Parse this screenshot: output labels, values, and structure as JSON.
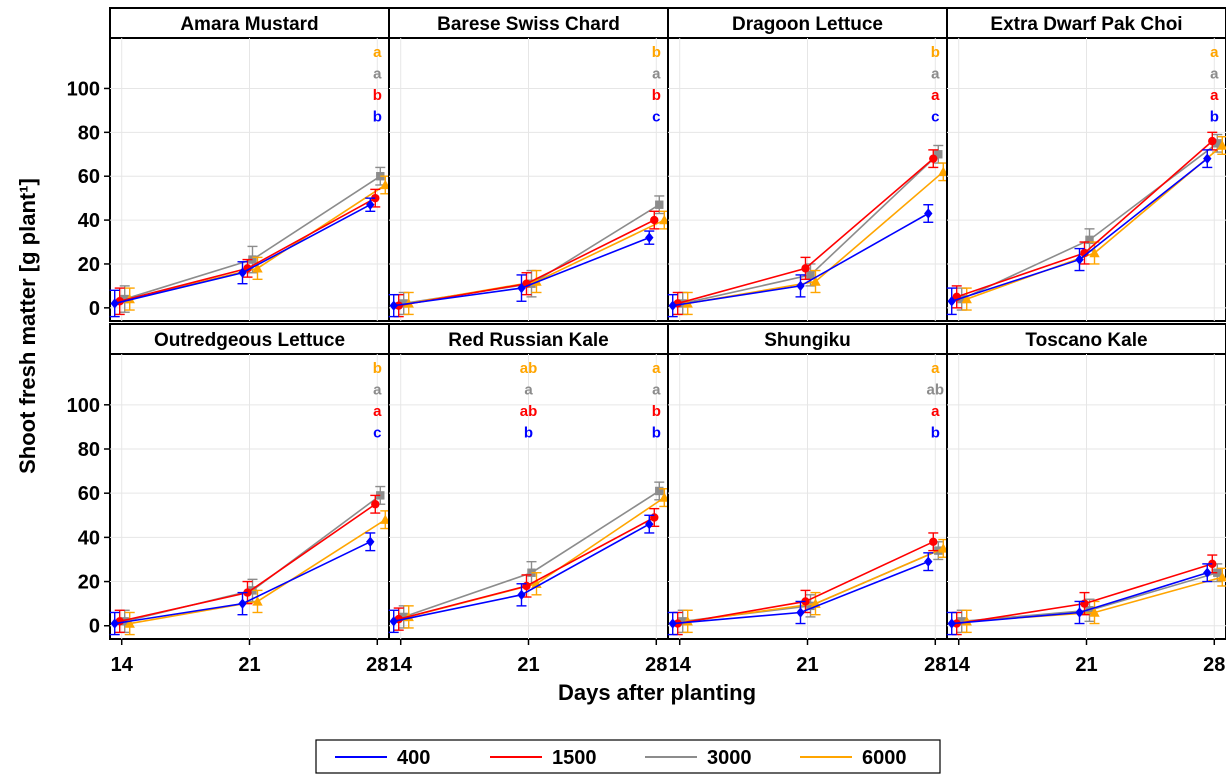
{
  "chart_data": {
    "type": "line",
    "xlabel": "Days after planting",
    "ylabel": "Shoot fresh matter [g plant¹]",
    "x": [
      14,
      21,
      28
    ],
    "x_ticks": [
      "14",
      "21",
      "28"
    ],
    "ylim": [
      -6,
      123
    ],
    "y_ticks": [
      0,
      20,
      40,
      60,
      80,
      100
    ],
    "grid": true,
    "legend": {
      "placement": "bottom",
      "entries": [
        "400",
        "1500",
        "3000",
        "6000"
      ]
    },
    "colors": {
      "400": "#0000ff",
      "1500": "#ff0000",
      "3000": "#8c8c8c",
      "6000": "#ffa500"
    },
    "marker_shapes": {
      "400": "diamond",
      "1500": "circle",
      "3000": "square",
      "6000": "triangle"
    },
    "panels": [
      {
        "title": "Amara Mustard",
        "series": [
          {
            "name": "400",
            "values": [
              2,
              16,
              47
            ],
            "errors": [
              6,
              5,
              3
            ]
          },
          {
            "name": "1500",
            "values": [
              3,
              18,
              50
            ],
            "errors": [
              6,
              4,
              4
            ]
          },
          {
            "name": "3000",
            "values": [
              4,
              22,
              60
            ],
            "errors": [
              6,
              6,
              4
            ]
          },
          {
            "name": "6000",
            "values": [
              4,
              18,
              56
            ],
            "errors": [
              5,
              5,
              4
            ]
          }
        ],
        "letters": [
          {
            "x_index": 2,
            "labels": {
              "6000": "a",
              "3000": "a",
              "1500": "b",
              "400": "b"
            }
          }
        ]
      },
      {
        "title": "Barese Swiss Chard",
        "series": [
          {
            "name": "400",
            "values": [
              1,
              9,
              32
            ],
            "errors": [
              5,
              6,
              3
            ]
          },
          {
            "name": "1500",
            "values": [
              1,
              11,
              40
            ],
            "errors": [
              5,
              5,
              4
            ]
          },
          {
            "name": "3000",
            "values": [
              2,
              11,
              47
            ],
            "errors": [
              5,
              6,
              4
            ]
          },
          {
            "name": "6000",
            "values": [
              2,
              12,
              40
            ],
            "errors": [
              5,
              5,
              4
            ]
          }
        ],
        "letters": [
          {
            "x_index": 2,
            "labels": {
              "6000": "b",
              "3000": "a",
              "1500": "b",
              "400": "c"
            }
          }
        ]
      },
      {
        "title": "Dragoon Lettuce",
        "series": [
          {
            "name": "400",
            "values": [
              1,
              10,
              43
            ],
            "errors": [
              5,
              5,
              4
            ]
          },
          {
            "name": "1500",
            "values": [
              2,
              18,
              68
            ],
            "errors": [
              5,
              5,
              4
            ]
          },
          {
            "name": "3000",
            "values": [
              2,
              15,
              70
            ],
            "errors": [
              5,
              5,
              4
            ]
          },
          {
            "name": "6000",
            "values": [
              2,
              12,
              62
            ],
            "errors": [
              5,
              5,
              4
            ]
          }
        ],
        "letters": [
          {
            "x_index": 2,
            "labels": {
              "6000": "b",
              "3000": "a",
              "1500": "a",
              "400": "c"
            }
          }
        ]
      },
      {
        "title": "Extra Dwarf Pak Choi",
        "series": [
          {
            "name": "400",
            "values": [
              3,
              22,
              68
            ],
            "errors": [
              6,
              5,
              4
            ]
          },
          {
            "name": "1500",
            "values": [
              5,
              25,
              76
            ],
            "errors": [
              5,
              5,
              4
            ]
          },
          {
            "name": "3000",
            "values": [
              4,
              31,
              75
            ],
            "errors": [
              5,
              5,
              4
            ]
          },
          {
            "name": "6000",
            "values": [
              4,
              25,
              74
            ],
            "errors": [
              5,
              5,
              4
            ]
          }
        ],
        "letters": [
          {
            "x_index": 2,
            "labels": {
              "6000": "a",
              "3000": "a",
              "1500": "a",
              "400": "b"
            }
          }
        ]
      },
      {
        "title": "Outredgeous Lettuce",
        "series": [
          {
            "name": "400",
            "values": [
              1,
              10,
              38
            ],
            "errors": [
              5,
              5,
              4
            ]
          },
          {
            "name": "1500",
            "values": [
              2,
              15,
              55
            ],
            "errors": [
              5,
              5,
              4
            ]
          },
          {
            "name": "3000",
            "values": [
              2,
              16,
              59
            ],
            "errors": [
              5,
              5,
              4
            ]
          },
          {
            "name": "6000",
            "values": [
              1,
              11,
              48
            ],
            "errors": [
              5,
              5,
              4
            ]
          }
        ],
        "letters": [
          {
            "x_index": 2,
            "labels": {
              "6000": "b",
              "3000": "a",
              "1500": "a",
              "400": "c"
            }
          }
        ]
      },
      {
        "title": "Red Russian Kale",
        "series": [
          {
            "name": "400",
            "values": [
              2,
              14,
              46
            ],
            "errors": [
              5,
              5,
              4
            ]
          },
          {
            "name": "1500",
            "values": [
              3,
              18,
              49
            ],
            "errors": [
              5,
              5,
              4
            ]
          },
          {
            "name": "3000",
            "values": [
              4,
              24,
              61
            ],
            "errors": [
              5,
              5,
              4
            ]
          },
          {
            "name": "6000",
            "values": [
              4,
              19,
              58
            ],
            "errors": [
              5,
              5,
              4
            ]
          }
        ],
        "letters": [
          {
            "x_index": 1,
            "labels": {
              "6000": "ab",
              "3000": "a",
              "1500": "ab",
              "400": "b"
            }
          },
          {
            "x_index": 2,
            "labels": {
              "6000": "a",
              "3000": "a",
              "1500": "b",
              "400": "b"
            }
          }
        ]
      },
      {
        "title": "Shungiku",
        "series": [
          {
            "name": "400",
            "values": [
              1,
              6,
              29
            ],
            "errors": [
              5,
              5,
              4
            ]
          },
          {
            "name": "1500",
            "values": [
              1,
              11,
              38
            ],
            "errors": [
              5,
              5,
              4
            ]
          },
          {
            "name": "3000",
            "values": [
              2,
              9,
              34
            ],
            "errors": [
              5,
              5,
              4
            ]
          },
          {
            "name": "6000",
            "values": [
              2,
              10,
              35
            ],
            "errors": [
              5,
              5,
              4
            ]
          }
        ],
        "letters": [
          {
            "x_index": 2,
            "labels": {
              "6000": "a",
              "3000": "ab",
              "1500": "a",
              "400": "b"
            }
          }
        ]
      },
      {
        "title": "Toscano Kale",
        "series": [
          {
            "name": "400",
            "values": [
              1,
              6,
              24
            ],
            "errors": [
              5,
              5,
              4
            ]
          },
          {
            "name": "1500",
            "values": [
              1,
              10,
              28
            ],
            "errors": [
              5,
              5,
              4
            ]
          },
          {
            "name": "3000",
            "values": [
              2,
              7,
              24
            ],
            "errors": [
              5,
              5,
              4
            ]
          },
          {
            "name": "6000",
            "values": [
              2,
              6,
              22
            ],
            "errors": [
              5,
              5,
              4
            ]
          }
        ],
        "letters": []
      }
    ]
  }
}
